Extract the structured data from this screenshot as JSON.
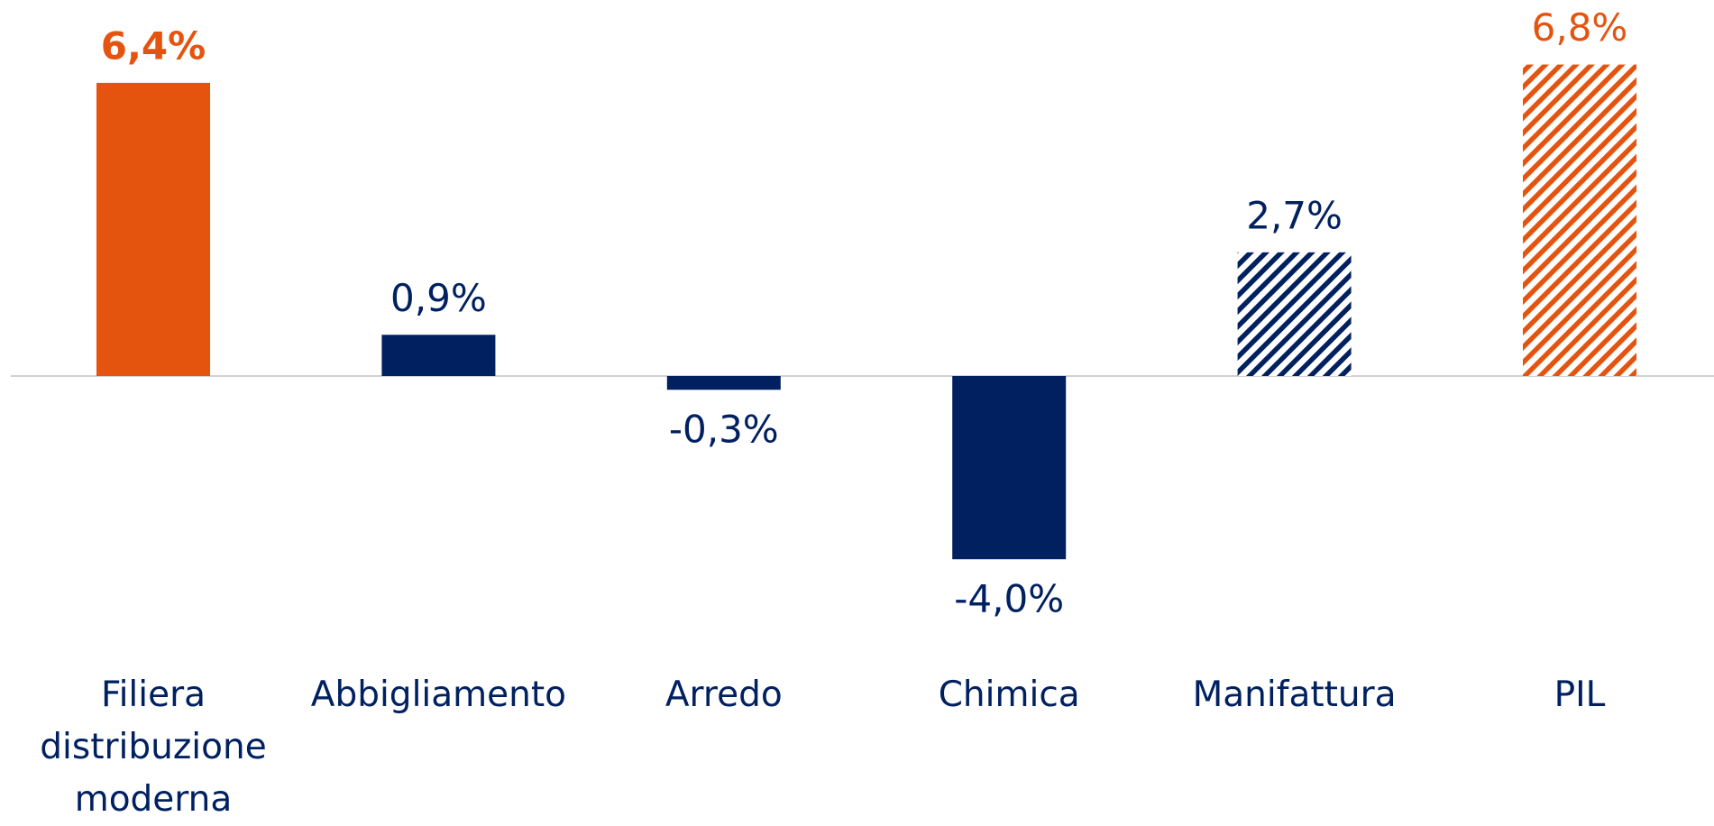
{
  "chart_data": {
    "type": "bar",
    "categories": [
      "Filiera distribuzione moderna",
      "Abbigliamento",
      "Arredo",
      "Chimica",
      "Manifattura",
      "PIL"
    ],
    "values": [
      6.4,
      0.9,
      -0.3,
      -4.0,
      2.7,
      6.8
    ],
    "value_labels": [
      "6,4%",
      "0,9%",
      "-0,3%",
      "-4,0%",
      "2,7%",
      "6,8%"
    ],
    "colors": [
      "#e5540f",
      "#002060",
      "#002060",
      "#002060",
      "#002060",
      "#e5540f"
    ],
    "patterns": [
      "solid",
      "solid",
      "solid",
      "solid",
      "hatch",
      "hatch"
    ],
    "value_label_bold": [
      true,
      false,
      false,
      false,
      false,
      false
    ]
  }
}
